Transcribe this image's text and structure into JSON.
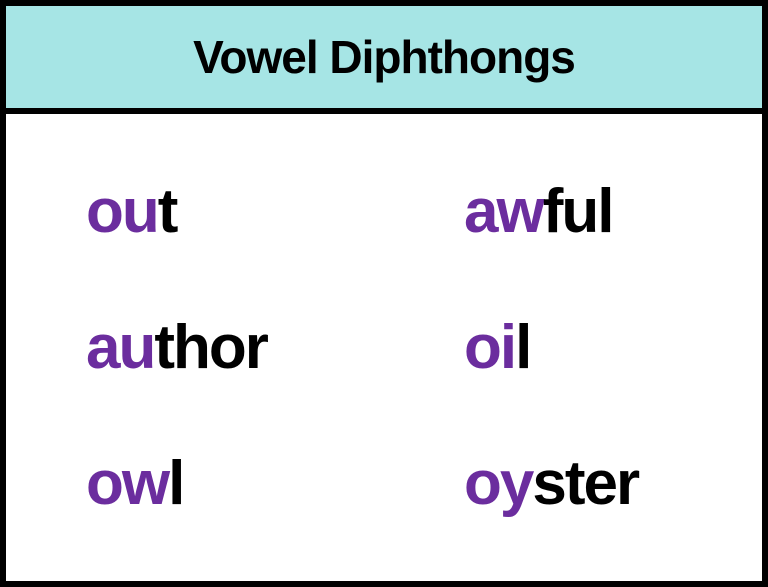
{
  "title": "Vowel Diphthongs",
  "colors": {
    "header_background": "#a6e5e5",
    "border": "#000000",
    "diphthong": "#6b2d9e",
    "text": "#000000",
    "page_background": "#ffffff"
  },
  "typography": {
    "title_fontsize": 46,
    "word_fontsize": 62,
    "font_family": "Segoe UI, Arial, sans-serif",
    "title_weight": 600,
    "word_weight": 700
  },
  "layout": {
    "border_width": 6,
    "columns": 2,
    "rows": 3
  },
  "words": [
    {
      "diphthong": "ou",
      "rest": "t"
    },
    {
      "diphthong": "aw",
      "rest": "ful"
    },
    {
      "diphthong": "au",
      "rest": "thor"
    },
    {
      "diphthong": "oi",
      "rest": "l"
    },
    {
      "diphthong": "ow",
      "rest": "l"
    },
    {
      "diphthong": "oy",
      "rest": "ster"
    }
  ]
}
